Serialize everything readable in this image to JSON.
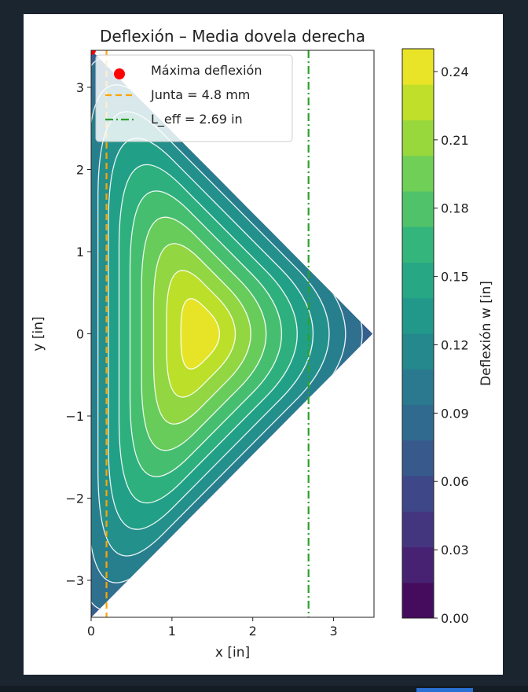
{
  "chart_data": {
    "type": "contour",
    "title": "Deflexión – Media dovela derecha",
    "xlabel": "x [in]",
    "ylabel": "y [in]",
    "xlim": [
      0,
      3.5
    ],
    "ylim": [
      -3.45,
      3.45
    ],
    "xticks": [
      0,
      1,
      2,
      3
    ],
    "yticks": [
      -3,
      -2,
      -1,
      0,
      1,
      2,
      3
    ],
    "domain_polygon": [
      [
        0,
        -3.45
      ],
      [
        3.48,
        0
      ],
      [
        0,
        3.45
      ]
    ],
    "max_deflection_value": 0.25,
    "max_deflection_center": [
      1.35,
      0
    ],
    "contour_levels": [
      0.0,
      0.0167,
      0.0333,
      0.05,
      0.0667,
      0.0833,
      0.1,
      0.1167,
      0.1333,
      0.15,
      0.1667,
      0.1833,
      0.2,
      0.2167,
      0.2333,
      0.25
    ],
    "colormap": "viridis",
    "colorbar": {
      "label": "Deflexión w [in]",
      "range": [
        0,
        0.25
      ],
      "ticks": [
        "0.00",
        "0.03",
        "0.06",
        "0.09",
        "0.12",
        "0.15",
        "0.18",
        "0.21",
        "0.24"
      ],
      "tick_values": [
        0,
        0.03,
        0.06,
        0.09,
        0.12,
        0.15,
        0.18,
        0.21,
        0.24
      ]
    },
    "annotations": {
      "max_point": {
        "x": 0,
        "y": 3.45,
        "label": "Máxima deflexión",
        "color": "#ff0000"
      },
      "junta_line": {
        "x": 0.19,
        "label": "Junta = 4.8 mm",
        "color": "#ffa500",
        "style": "dashed"
      },
      "leff_line": {
        "x": 2.69,
        "label": "L_eff = 2.69 in",
        "color": "#2ca02c",
        "style": "dashdot"
      }
    },
    "legend_placement": "top-left",
    "grid": false
  }
}
